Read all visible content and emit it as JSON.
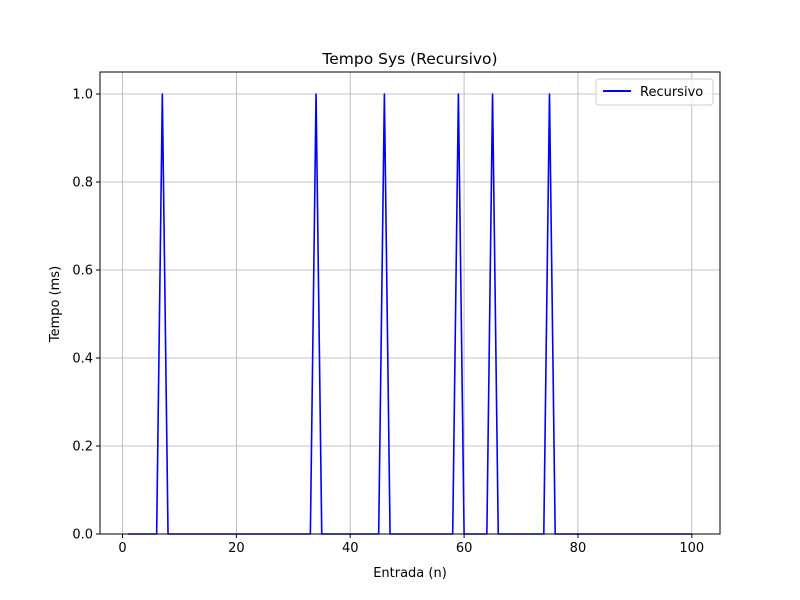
{
  "chart_data": {
    "type": "line",
    "title": "Tempo Sys (Recursivo)",
    "xlabel": "Entrada (n)",
    "ylabel": "Tempo (ms)",
    "xlim": [
      -3.95,
      104.95
    ],
    "ylim": [
      0,
      1.05
    ],
    "xticks": [
      0,
      20,
      40,
      60,
      80,
      100
    ],
    "yticks": [
      0.0,
      0.2,
      0.4,
      0.6,
      0.8,
      1.0
    ],
    "xtick_labels": [
      "0",
      "20",
      "40",
      "60",
      "80",
      "100"
    ],
    "ytick_labels": [
      "0.0",
      "0.2",
      "0.4",
      "0.6",
      "0.8",
      "1.0"
    ],
    "grid": true,
    "legend_position": "top-right",
    "series": [
      {
        "name": "Recursivo",
        "color": "#0000ff",
        "x": [
          1,
          6,
          7,
          8,
          33,
          34,
          35,
          45,
          46,
          47,
          58,
          59,
          60,
          64,
          65,
          66,
          74,
          75,
          76,
          100
        ],
        "y": [
          0,
          0,
          1,
          0,
          0,
          1,
          0,
          0,
          1,
          0,
          0,
          1,
          0,
          0,
          1,
          0,
          0,
          1,
          0,
          0
        ]
      }
    ]
  }
}
